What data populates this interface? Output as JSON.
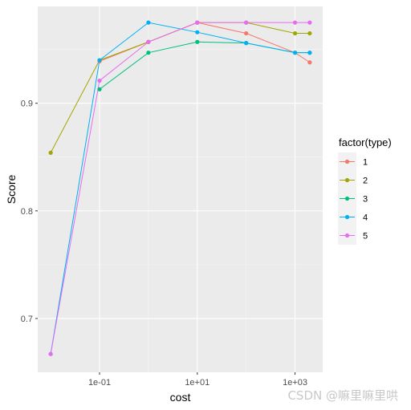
{
  "chart_data": {
    "type": "line",
    "title": "",
    "xlabel": "cost",
    "ylabel": "Score",
    "x_scale": "log10",
    "x": [
      0.01,
      0.1,
      1,
      10,
      100,
      1000,
      2000
    ],
    "x_ticks": [
      {
        "value": 0.1,
        "label": "1e-01"
      },
      {
        "value": 10,
        "label": "1e+01"
      },
      {
        "value": 1000,
        "label": "1e+03"
      }
    ],
    "y_ticks": [
      {
        "value": 0.7,
        "label": "0.7"
      },
      {
        "value": 0.8,
        "label": "0.8"
      },
      {
        "value": 0.9,
        "label": "0.9"
      }
    ],
    "ylim": [
      0.65,
      0.99
    ],
    "grid": true,
    "legend_title": "factor(type)",
    "legend_position": "right",
    "series": [
      {
        "name": "1",
        "color": "#F8766D",
        "values": [
          null,
          0.939,
          0.957,
          0.975,
          0.965,
          0.947,
          0.938
        ]
      },
      {
        "name": "2",
        "color": "#A3A500",
        "values": [
          0.854,
          0.94,
          0.957,
          0.975,
          0.975,
          0.965,
          0.965
        ]
      },
      {
        "name": "3",
        "color": "#00BF7D",
        "values": [
          null,
          0.913,
          0.947,
          0.957,
          0.956,
          0.947,
          0.947
        ]
      },
      {
        "name": "4",
        "color": "#00B0F6",
        "values": [
          0.667,
          0.94,
          0.975,
          0.966,
          0.956,
          0.947,
          0.947
        ]
      },
      {
        "name": "5",
        "color": "#E76BF3",
        "values": [
          0.667,
          0.921,
          0.957,
          0.975,
          0.975,
          0.975,
          0.975
        ]
      }
    ]
  },
  "watermark": "CSDN @嘛里嘛里哄"
}
